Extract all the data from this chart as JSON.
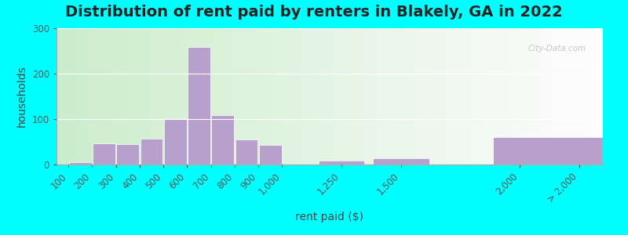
{
  "title": "Distribution of rent paid by renters in Blakely, GA in 2022",
  "xlabel": "rent paid ($)",
  "ylabel": "households",
  "bar_color": "#b8a0cc",
  "outer_bg": "#00ffff",
  "ylim": [
    0,
    300
  ],
  "yticks": [
    0,
    100,
    200,
    300
  ],
  "title_fontsize": 14,
  "axis_label_fontsize": 10,
  "tick_fontsize": 8.5,
  "tick_labels": [
    "100",
    "200",
    "300",
    "400",
    "500",
    "600",
    "700",
    "800",
    "900",
    "1,000",
    "1,250",
    "1,500",
    "2,000",
    "> 2,000"
  ],
  "tick_positions": [
    100,
    200,
    300,
    400,
    500,
    600,
    700,
    800,
    900,
    1000,
    1250,
    1500,
    2000,
    2250
  ],
  "bar_left_edges": [
    100,
    200,
    300,
    400,
    500,
    600,
    700,
    800,
    900,
    1150,
    1375,
    1875
  ],
  "bar_widths": [
    100,
    100,
    100,
    100,
    100,
    100,
    100,
    100,
    100,
    200,
    250,
    500
  ],
  "bar_values": [
    5,
    47,
    45,
    57,
    102,
    258,
    108,
    55,
    43,
    9,
    14,
    60
  ]
}
